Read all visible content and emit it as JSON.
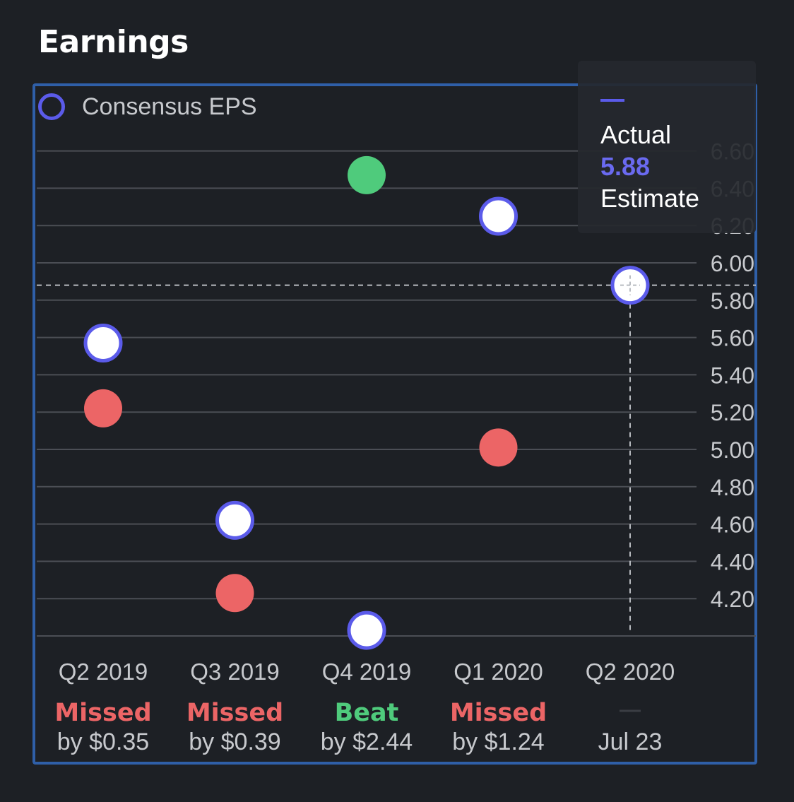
{
  "header": {
    "title": "Earnings"
  },
  "legend": {
    "label": "Consensus EPS"
  },
  "tooltip": {
    "actual_label": "Actual",
    "value": "5.88",
    "estimate_label": "Estimate"
  },
  "colors": {
    "background": "#1d2025",
    "card_border": "#2f5fa8",
    "estimate_ring": "#5b5bea",
    "missed": "#ec6566",
    "beat": "#4fcb7c",
    "grid": "#4b4e55",
    "axis_text": "#c7c9cd"
  },
  "chart_data": {
    "type": "scatter",
    "categories": [
      "Q2 2019",
      "Q3 2019",
      "Q4 2019",
      "Q1 2020",
      "Q2 2020"
    ],
    "y_ticks": [
      "4.20",
      "4.40",
      "4.60",
      "4.80",
      "5.00",
      "5.20",
      "5.40",
      "5.60",
      "5.80",
      "6.00",
      "6.20",
      "6.40",
      "6.60"
    ],
    "ylim": [
      4.0,
      6.73
    ],
    "y_axis_position": "right",
    "grid": true,
    "series": [
      {
        "name": "Consensus EPS",
        "style": "ring",
        "values": [
          5.57,
          4.62,
          4.03,
          6.25,
          5.88
        ]
      },
      {
        "style": "filled",
        "values": [
          5.22,
          4.23,
          6.47,
          5.01,
          null
        ]
      }
    ],
    "results": [
      {
        "status": "Missed",
        "detail": "by $0.35",
        "color": "#ec6566"
      },
      {
        "status": "Missed",
        "detail": "by $0.39",
        "color": "#ec6566"
      },
      {
        "status": "Beat",
        "detail": "by $2.44",
        "color": "#4fcb7c"
      },
      {
        "status": "Missed",
        "detail": "by $1.24",
        "color": "#ec6566"
      },
      {
        "status": "",
        "detail": "Jul 23",
        "color": "#c7c9cd"
      }
    ],
    "crosshair": {
      "category": "Q2 2020",
      "value": 5.88
    }
  }
}
